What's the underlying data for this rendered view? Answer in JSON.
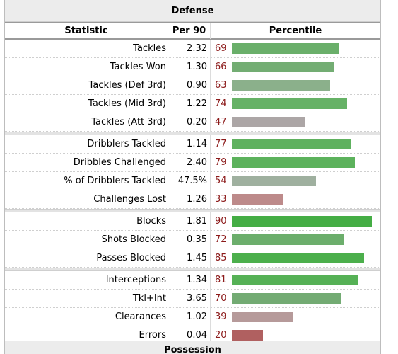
{
  "section_title": "Defense",
  "next_section_title": "Possession",
  "columns": {
    "statistic": "Statistic",
    "per90": "Per 90",
    "percentile": "Percentile"
  },
  "groups": [
    {
      "rows": [
        {
          "stat": "Tackles",
          "per90": "2.32",
          "pct": 69,
          "color": "#6aaf6a"
        },
        {
          "stat": "Tackles Won",
          "per90": "1.30",
          "pct": 66,
          "color": "#73ad73"
        },
        {
          "stat": "Tackles (Def 3rd)",
          "per90": "0.90",
          "pct": 63,
          "color": "#8bb08b"
        },
        {
          "stat": "Tackles (Mid 3rd)",
          "per90": "1.22",
          "pct": 74,
          "color": "#66b266"
        },
        {
          "stat": "Tackles (Att 3rd)",
          "per90": "0.20",
          "pct": 47,
          "color": "#aca6a6"
        }
      ]
    },
    {
      "rows": [
        {
          "stat": "Dribblers Tackled",
          "per90": "1.14",
          "pct": 77,
          "color": "#5fb15f"
        },
        {
          "stat": "Dribbles Challenged",
          "per90": "2.40",
          "pct": 79,
          "color": "#5cb25c"
        },
        {
          "stat": "% of Dribblers Tackled",
          "per90": "47.5%",
          "pct": 54,
          "color": "#9fb09f"
        },
        {
          "stat": "Challenges Lost",
          "per90": "1.26",
          "pct": 33,
          "color": "#bd8a8a"
        }
      ]
    },
    {
      "rows": [
        {
          "stat": "Blocks",
          "per90": "1.81",
          "pct": 90,
          "color": "#44ad44"
        },
        {
          "stat": "Shots Blocked",
          "per90": "0.35",
          "pct": 72,
          "color": "#6cae6c"
        },
        {
          "stat": "Passes Blocked",
          "per90": "1.45",
          "pct": 85,
          "color": "#4caf4c"
        }
      ]
    },
    {
      "rows": [
        {
          "stat": "Interceptions",
          "per90": "1.34",
          "pct": 81,
          "color": "#56b156"
        },
        {
          "stat": "Tkl+Int",
          "per90": "3.65",
          "pct": 70,
          "color": "#73ab73"
        },
        {
          "stat": "Clearances",
          "per90": "1.02",
          "pct": 39,
          "color": "#b69a9a"
        },
        {
          "stat": "Errors",
          "per90": "0.04",
          "pct": 20,
          "color": "#b06060"
        }
      ]
    }
  ]
}
